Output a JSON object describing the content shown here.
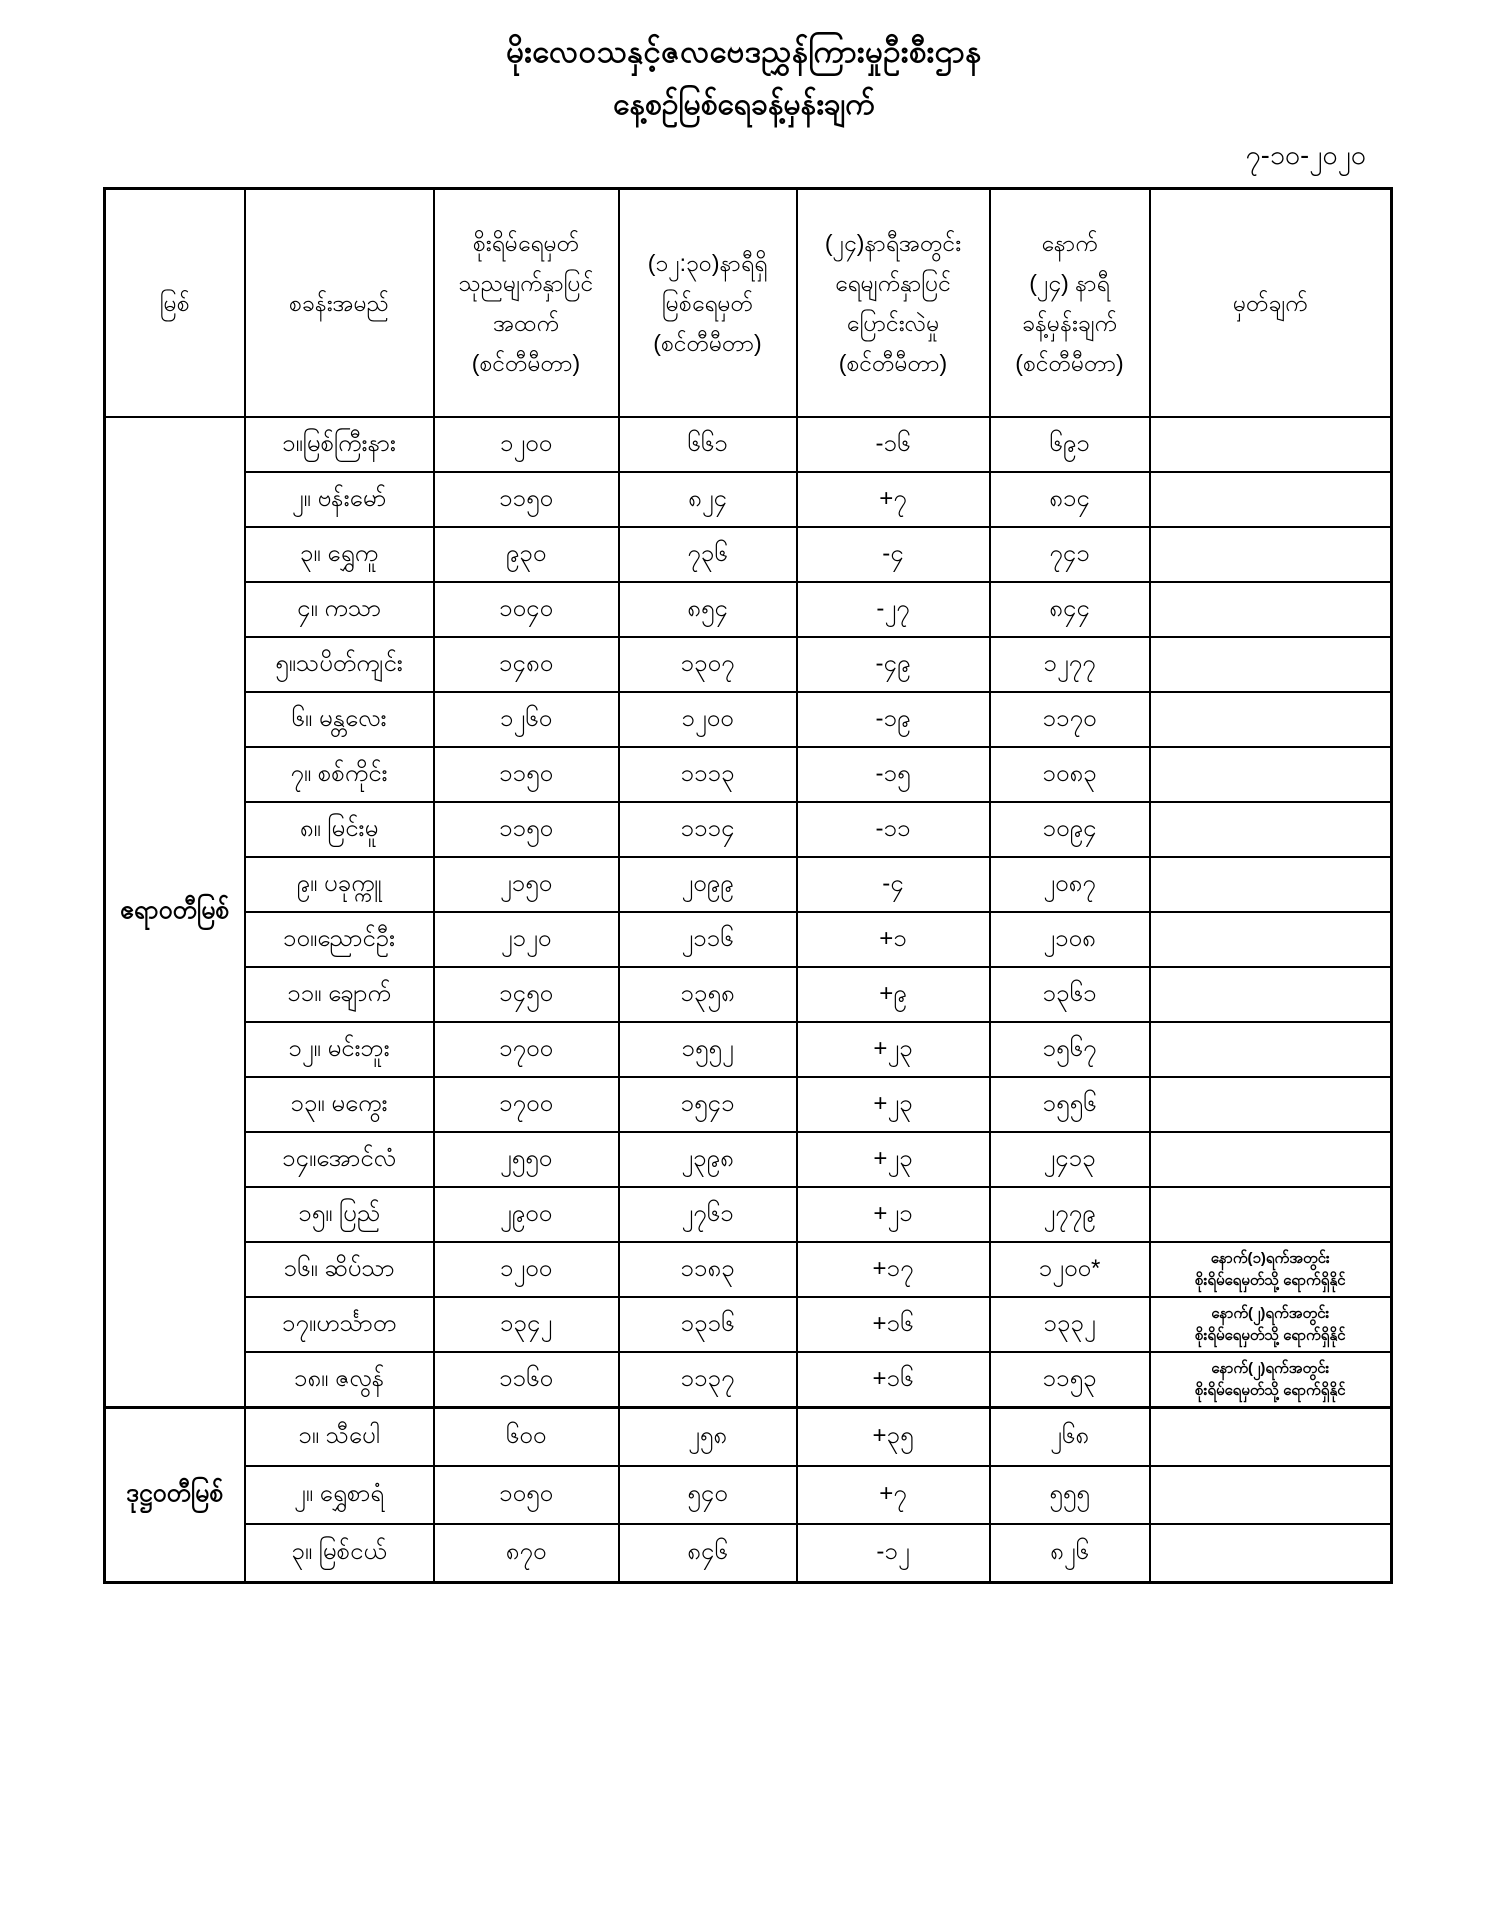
{
  "header": {
    "title_line1": "မိုးလေဝသနှင့်ဇလဗေဒညွှန်ကြားမှုဦးစီးဌာန",
    "title_line2": "နေ့စဉ်မြစ်ရေခန့်မှန်းချက်",
    "date": "၇-၁၀-၂၀၂၀"
  },
  "table": {
    "columns": [
      "မြစ်",
      "စခန်းအမည်",
      "စိုးရိမ်ရေမှတ်\nသုညမျက်နှာပြင်\nအထက်\n(စင်တီမီတာ)",
      "(၁၂:၃၀)နာရီရှိ\nမြစ်ရေမှတ်\n(စင်တီမီတာ)",
      "(၂၄)နာရီအတွင်း\nရေမျက်နှာပြင်\nပြောင်းလဲမှု\n(စင်တီမီတာ)",
      "နောက်\n(၂၄) နာရီ\nခန့်မှန်းချက်\n(စင်တီမီတာ)",
      "မှတ်ချက်"
    ],
    "sections": [
      {
        "river": "ဧရာဝတီမြစ်",
        "rows": [
          {
            "station": "၁။မြစ်ကြီးနား",
            "danger_level": "၁၂၀၀",
            "water_level_1230": "၆၆၁",
            "change_24h": "-၁၆",
            "forecast_24h": "၆၉၁",
            "remark": ""
          },
          {
            "station": "၂။ ဗန်းမော်",
            "danger_level": "၁၁၅၀",
            "water_level_1230": "၈၂၄",
            "change_24h": "+၇",
            "forecast_24h": "၈၁၄",
            "remark": ""
          },
          {
            "station": "၃။ ရွှေကူ",
            "danger_level": "၉၃၀",
            "water_level_1230": "၇၃၆",
            "change_24h": "-၄",
            "forecast_24h": "၇၄၁",
            "remark": ""
          },
          {
            "station": "၄။ ကသာ",
            "danger_level": "၁၀၄၀",
            "water_level_1230": "၈၅၄",
            "change_24h": "-၂၇",
            "forecast_24h": "၈၄၄",
            "remark": ""
          },
          {
            "station": "၅။သပိတ်ကျင်း",
            "danger_level": "၁၄၈၀",
            "water_level_1230": "၁၃၀၇",
            "change_24h": "-၄၉",
            "forecast_24h": "၁၂၇၇",
            "remark": ""
          },
          {
            "station": "၆။ မန္တလေး",
            "danger_level": "၁၂၆၀",
            "water_level_1230": "၁၂၀၀",
            "change_24h": "-၁၉",
            "forecast_24h": "၁၁၇၀",
            "remark": ""
          },
          {
            "station": "၇။ စစ်ကိုင်း",
            "danger_level": "၁၁၅၀",
            "water_level_1230": "၁၁၁၃",
            "change_24h": "-၁၅",
            "forecast_24h": "၁၀၈၃",
            "remark": ""
          },
          {
            "station": "၈။ မြင်းမူ",
            "danger_level": "၁၁၅၀",
            "water_level_1230": "၁၁၁၄",
            "change_24h": "-၁၁",
            "forecast_24h": "၁၀၉၄",
            "remark": ""
          },
          {
            "station": "၉။ ပခုက္ကူ",
            "danger_level": "၂၁၅၀",
            "water_level_1230": "၂၀၉၉",
            "change_24h": "-၄",
            "forecast_24h": "၂၀၈၇",
            "remark": ""
          },
          {
            "station": "၁၀။ညောင်ဦး",
            "danger_level": "၂၁၂၀",
            "water_level_1230": "၂၁၁၆",
            "change_24h": "+၁",
            "forecast_24h": "၂၁၀၈",
            "remark": ""
          },
          {
            "station": "၁၁။ ချောက်",
            "danger_level": "၁၄၅၀",
            "water_level_1230": "၁၃၅၈",
            "change_24h": "+၉",
            "forecast_24h": "၁၃၆၁",
            "remark": ""
          },
          {
            "station": "၁၂။ မင်းဘူး",
            "danger_level": "၁၇၀၀",
            "water_level_1230": "၁၅၅၂",
            "change_24h": "+၂၃",
            "forecast_24h": "၁၅၆၇",
            "remark": ""
          },
          {
            "station": "၁၃။ မကွေး",
            "danger_level": "၁၇၀၀",
            "water_level_1230": "၁၅၄၁",
            "change_24h": "+၂၃",
            "forecast_24h": "၁၅၅၆",
            "remark": ""
          },
          {
            "station": "၁၄။အောင်လံ",
            "danger_level": "၂၅၅၀",
            "water_level_1230": "၂၃၉၈",
            "change_24h": "+၂၃",
            "forecast_24h": "၂၄၁၃",
            "remark": ""
          },
          {
            "station": "၁၅။ ပြည်",
            "danger_level": "၂၉၀၀",
            "water_level_1230": "၂၇၆၁",
            "change_24h": "+၂၁",
            "forecast_24h": "၂၇၇၉",
            "remark": ""
          },
          {
            "station": "၁၆။ ဆိပ်သာ",
            "danger_level": "၁၂၀၀",
            "water_level_1230": "၁၁၈၃",
            "change_24h": "+၁၇",
            "forecast_24h": "၁၂၀၀*",
            "remark": "နောက်(၁)ရက်အတွင်း\nစိုးရိမ်ရေမှတ်သို့ ရောက်ရှိနိုင်"
          },
          {
            "station": "၁၇။ဟင်္သာတ",
            "danger_level": "၁၃၄၂",
            "water_level_1230": "၁၃၁၆",
            "change_24h": "+၁၆",
            "forecast_24h": "၁၃၃၂",
            "remark": "နောက်(၂)ရက်အတွင်း\nစိုးရိမ်ရေမှတ်သို့ ရောက်ရှိနိုင်"
          },
          {
            "station": "၁၈။ ဇလွန်",
            "danger_level": "၁၁၆၀",
            "water_level_1230": "၁၁၃၇",
            "change_24h": "+၁၆",
            "forecast_24h": "၁၁၅၃",
            "remark": "နောက်(၂)ရက်အတွင်း\nစိုးရိမ်ရေမှတ်သို့ ရောက်ရှိနိုင်"
          }
        ]
      },
      {
        "river": "ဒုဋ္ဌဝတီမြစ်",
        "rows": [
          {
            "station": "၁။ သီပေါ",
            "danger_level": "၆၀၀",
            "water_level_1230": "၂၅၈",
            "change_24h": "+၃၅",
            "forecast_24h": "၂၆၈",
            "remark": ""
          },
          {
            "station": "၂။ ရွှေစာရံ",
            "danger_level": "၁၀၅၀",
            "water_level_1230": "၅၄၀",
            "change_24h": "+၇",
            "forecast_24h": "၅၅၅",
            "remark": ""
          },
          {
            "station": "၃။ မြစ်ငယ်",
            "danger_level": "၈၇၀",
            "water_level_1230": "၈၄၆",
            "change_24h": "-၁၂",
            "forecast_24h": "၈၂၆",
            "remark": ""
          }
        ]
      }
    ]
  }
}
